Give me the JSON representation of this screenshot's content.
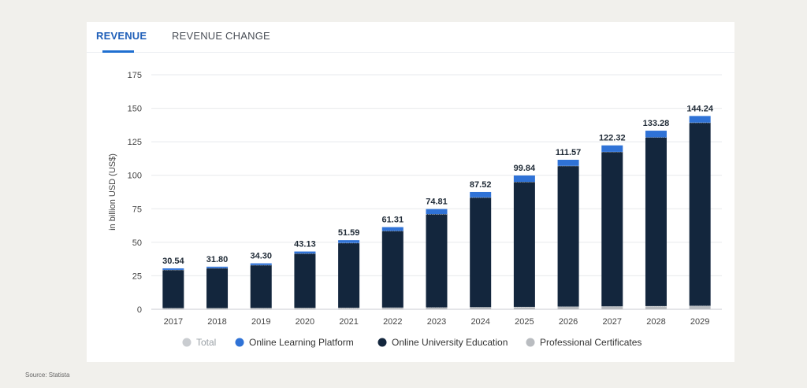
{
  "tabs": [
    {
      "label": "REVENUE",
      "active": true
    },
    {
      "label": "REVENUE CHANGE",
      "active": false
    }
  ],
  "source": "Source: Statista",
  "chart_data": {
    "type": "bar",
    "stacked": true,
    "ylabel": "in billion USD (US$)",
    "ylim": [
      0,
      175
    ],
    "yticks": [
      0,
      25,
      50,
      75,
      100,
      125,
      150,
      175
    ],
    "grid": true,
    "legend_position": "bottom",
    "categories": [
      "2017",
      "2018",
      "2019",
      "2020",
      "2021",
      "2022",
      "2023",
      "2024",
      "2025",
      "2026",
      "2027",
      "2028",
      "2029"
    ],
    "totals": [
      30.54,
      31.8,
      34.3,
      43.13,
      51.59,
      61.31,
      74.81,
      87.52,
      99.84,
      111.57,
      122.32,
      133.28,
      144.24
    ],
    "total_labels": [
      "30.54",
      "31.80",
      "34.30",
      "43.13",
      "51.59",
      "61.31",
      "74.81",
      "87.52",
      "99.84",
      "111.57",
      "122.32",
      "133.28",
      "144.24"
    ],
    "series": [
      {
        "name": "Professional Certificates",
        "color": "#b9bcc0",
        "values": [
          0.9,
          0.9,
          1.0,
          1.1,
          1.2,
          1.3,
          1.4,
          1.6,
          1.8,
          2.0,
          2.2,
          2.4,
          2.6
        ]
      },
      {
        "name": "Online University Education",
        "color": "#13263d",
        "values": [
          28.5,
          29.8,
          32.0,
          40.5,
          48.3,
          57.2,
          69.6,
          81.9,
          93.3,
          105.0,
          115.3,
          125.9,
          136.7
        ]
      },
      {
        "name": "Online Learning Platform",
        "color": "#2f72d6",
        "values": [
          1.14,
          1.1,
          1.3,
          1.53,
          2.09,
          2.81,
          3.81,
          4.02,
          4.74,
          4.57,
          4.82,
          4.98,
          4.94
        ]
      }
    ],
    "legend": [
      {
        "name": "Total",
        "color": "#c9ccd0"
      },
      {
        "name": "Online Learning Platform",
        "color": "#2f72d6"
      },
      {
        "name": "Online University Education",
        "color": "#13263d"
      },
      {
        "name": "Professional Certificates",
        "color": "#b9bcc0"
      }
    ]
  }
}
